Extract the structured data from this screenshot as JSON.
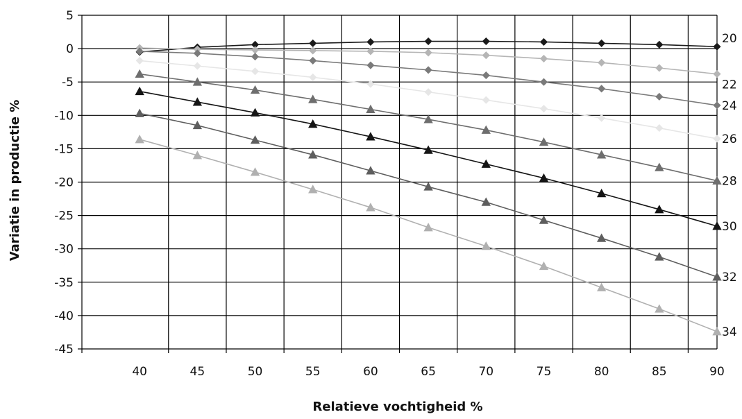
{
  "chart_data": {
    "type": "line",
    "xlabel": "Relatieve vochtigheid %",
    "ylabel": "Variatie in productie %",
    "x": [
      40,
      45,
      50,
      55,
      60,
      65,
      70,
      75,
      80,
      85,
      90
    ],
    "xlim": [
      35,
      90
    ],
    "ylim": [
      -45,
      5
    ],
    "yticks": [
      5,
      0,
      -5,
      -10,
      -15,
      -20,
      -25,
      -30,
      -35,
      -40,
      -45
    ],
    "grid": true,
    "legend": "none (series labelled at line ends)",
    "series": [
      {
        "name": "20",
        "marker": "diamond",
        "color": "#1a1a1a",
        "values": [
          -0.5,
          0.2,
          0.6,
          0.8,
          1.0,
          1.1,
          1.1,
          1.0,
          0.8,
          0.6,
          0.3
        ]
      },
      {
        "name": "22",
        "marker": "diamond",
        "color": "#b5b5b5",
        "values": [
          0.1,
          -0.1,
          -0.2,
          -0.3,
          -0.4,
          -0.6,
          -1.0,
          -1.5,
          -2.1,
          -2.9,
          -3.8
        ]
      },
      {
        "name": "24",
        "marker": "diamond",
        "color": "#7a7a7a",
        "values": [
          -0.4,
          -0.7,
          -1.2,
          -1.8,
          -2.5,
          -3.2,
          -4.0,
          -5.0,
          -6.0,
          -7.2,
          -8.5
        ]
      },
      {
        "name": "26",
        "marker": "diamond",
        "color": "#e6e6e6",
        "values": [
          -1.8,
          -2.6,
          -3.4,
          -4.3,
          -5.3,
          -6.5,
          -7.7,
          -9.0,
          -10.4,
          -11.9,
          -13.5
        ]
      },
      {
        "name": "28",
        "marker": "triangle",
        "color": "#6e6e6e",
        "values": [
          -3.8,
          -5.0,
          -6.2,
          -7.6,
          -9.1,
          -10.6,
          -12.2,
          -14.0,
          -15.9,
          -17.8,
          -19.8
        ]
      },
      {
        "name": "30",
        "marker": "triangle",
        "color": "#151515",
        "values": [
          -6.4,
          -8.0,
          -9.6,
          -11.3,
          -13.2,
          -15.2,
          -17.3,
          -19.4,
          -21.7,
          -24.1,
          -26.6
        ]
      },
      {
        "name": "32",
        "marker": "triangle",
        "color": "#5e5e5e",
        "values": [
          -9.7,
          -11.5,
          -13.7,
          -15.9,
          -18.3,
          -20.7,
          -23.0,
          -25.7,
          -28.4,
          -31.2,
          -34.2
        ]
      },
      {
        "name": "34",
        "marker": "triangle",
        "color": "#b0b0b0",
        "values": [
          -13.6,
          -16.0,
          -18.5,
          -21.1,
          -23.8,
          -26.8,
          -29.6,
          -32.6,
          -35.8,
          -39.0,
          -42.4
        ]
      }
    ]
  }
}
